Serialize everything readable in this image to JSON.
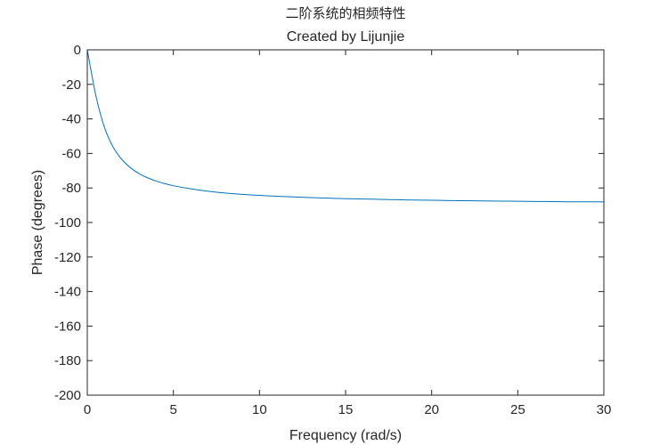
{
  "chart_data": {
    "type": "line",
    "title": "二阶系统的相频特性",
    "subtitle": "Created by Lijunjie",
    "xlabel": "Frequency (rad/s)",
    "ylabel": "Phase (degrees)",
    "xlim": [
      0,
      30
    ],
    "ylim": [
      -200,
      0
    ],
    "xticks": [
      "0",
      "5",
      "10",
      "15",
      "20",
      "25",
      "30"
    ],
    "yticks": [
      "0",
      "-20",
      "-40",
      "-60",
      "-80",
      "-100",
      "-120",
      "-140",
      "-160",
      "-180",
      "-200"
    ],
    "grid": false,
    "line_color": "#0072BD",
    "series": [
      {
        "x": [
          0,
          0.5,
          1,
          1.5,
          2,
          2.5,
          3,
          3.5,
          4,
          4.5,
          5,
          6,
          7,
          8,
          9,
          10,
          11,
          12,
          13,
          14,
          15,
          16,
          17,
          18,
          19,
          20,
          21,
          22,
          23,
          24,
          25,
          26,
          27,
          28,
          29,
          30
        ],
        "values": [
          0,
          -26.6,
          -45.0,
          -56.3,
          -63.4,
          -68.2,
          -71.6,
          -74.1,
          -76.0,
          -77.5,
          -78.7,
          -80.5,
          -81.9,
          -82.9,
          -83.7,
          -84.3,
          -84.8,
          -85.2,
          -85.6,
          -85.9,
          -86.2,
          -86.4,
          -86.6,
          -86.8,
          -87.0,
          -87.1,
          -87.3,
          -87.4,
          -87.5,
          -87.6,
          -87.7,
          -87.8,
          -87.9,
          -88.0,
          -88.0,
          -88.1
        ]
      }
    ]
  }
}
